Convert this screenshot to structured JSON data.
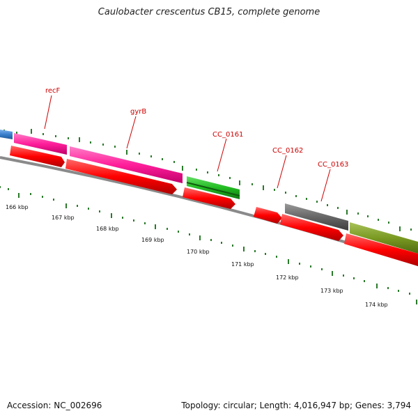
{
  "title": "Caulobacter crescentus CB15, complete genome",
  "accession": "Accession: NC_002696",
  "summary": "Topology: circular; Length: 4,016,947 bp; Genes: 3,794",
  "colors": {
    "forward_feature": "#ff1f9a",
    "reverse_feature": "#ff0000",
    "green_feature": "#22bb22",
    "gray_feature": "#666666",
    "olive_feature": "#7a9a22",
    "blue_feature": "#3a7fcc",
    "backbone": "#808080",
    "tick": "#2a7a2a",
    "label": "#cc0000"
  },
  "genes": [
    {
      "label": "recF",
      "color_key": "forward_feature"
    },
    {
      "label": "gyrB",
      "color_key": "forward_feature"
    },
    {
      "label": "CC_0161",
      "color_key": "green_feature"
    },
    {
      "label": "CC_0162",
      "color_key": "reverse_feature"
    },
    {
      "label": "CC_0163",
      "color_key": "gray_feature"
    }
  ],
  "scale_labels": [
    "166 kbp",
    "167 kbp",
    "168 kbp",
    "169 kbp",
    "170 kbp",
    "171 kbp",
    "172 kbp",
    "173 kbp",
    "174 kbp"
  ]
}
